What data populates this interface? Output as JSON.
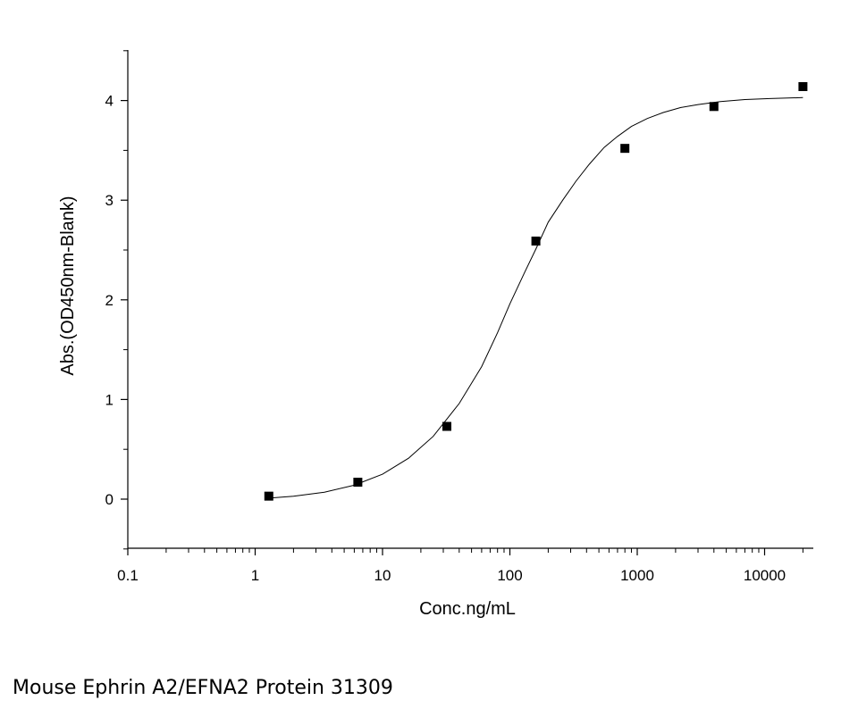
{
  "caption": "Mouse Ephrin A2/EFNA2 Protein 31309",
  "chart_data": {
    "type": "scatter",
    "title": "",
    "xlabel": "Conc.ng/mL",
    "ylabel": "Abs.(OD450nm-Blank)",
    "xscale": "log",
    "xlim": [
      0.1,
      25000
    ],
    "ylim": [
      -0.5,
      4.5
    ],
    "xticks": [
      0.1,
      1,
      10,
      100,
      1000,
      10000
    ],
    "xtick_labels": [
      "0.1",
      "1",
      "10",
      "100",
      "1000",
      "10000"
    ],
    "yticks": [
      0,
      1,
      2,
      3,
      4
    ],
    "ytick_labels": [
      "0",
      "1",
      "2",
      "3",
      "4"
    ],
    "grid": false,
    "legend": "none",
    "series": [
      {
        "kind": "points",
        "marker": "square",
        "color": "#000000",
        "x": [
          1.28,
          6.4,
          32,
          160,
          800,
          4000,
          20000
        ],
        "y": [
          0.03,
          0.17,
          0.73,
          2.59,
          3.52,
          3.94,
          4.14
        ]
      },
      {
        "kind": "fit-line",
        "color": "#000000",
        "x": [
          1.28,
          2,
          3.5,
          6,
          10,
          16,
          25,
          40,
          60,
          80,
          100,
          130,
          160,
          200,
          260,
          330,
          420,
          550,
          700,
          900,
          1200,
          1600,
          2200,
          3000,
          4500,
          7000,
          11000,
          20000
        ],
        "y": [
          0.01,
          0.03,
          0.07,
          0.14,
          0.25,
          0.41,
          0.63,
          0.96,
          1.33,
          1.67,
          1.96,
          2.27,
          2.51,
          2.78,
          3.0,
          3.19,
          3.36,
          3.53,
          3.64,
          3.74,
          3.82,
          3.88,
          3.93,
          3.96,
          3.99,
          4.01,
          4.02,
          4.03
        ]
      }
    ]
  }
}
